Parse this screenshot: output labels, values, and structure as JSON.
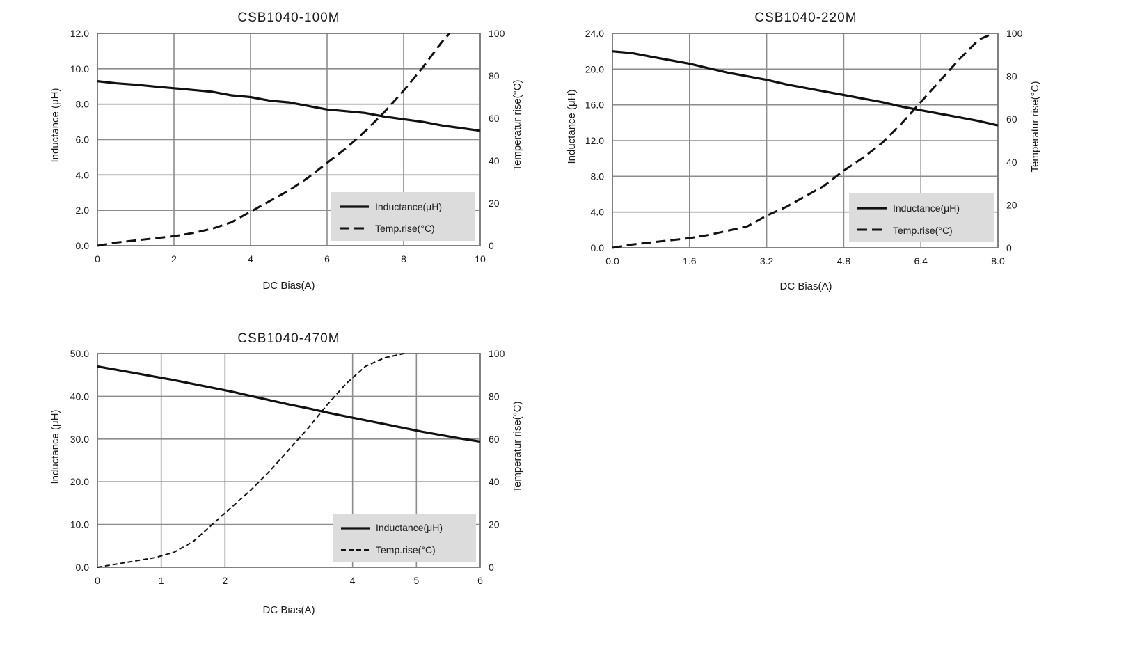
{
  "chart_data": [
    {
      "type": "line",
      "title": "CSB1040-100M",
      "xlabel": "DC Bias(A)",
      "ylabel": "Inductance (μH)",
      "y2label": "Temperatur rise(°C)",
      "xlim": [
        0,
        10
      ],
      "ylim": [
        0,
        12
      ],
      "y2lim": [
        0,
        100
      ],
      "xticks": [
        "0",
        "2",
        "4",
        "6",
        "8",
        "10"
      ],
      "yticks": [
        "0.0",
        "2.0",
        "4.0",
        "6.0",
        "8.0",
        "10.0",
        "12.0"
      ],
      "y2ticks": [
        "0",
        "20",
        "40",
        "60",
        "80",
        "100"
      ],
      "legend": {
        "position": "bottom-right",
        "inductance_label": "Inductance(μH)",
        "temp_label": "Temp.rise(°C)"
      },
      "series": [
        {
          "name": "Inductance(μH)",
          "axis": "left",
          "style": "solid",
          "x": [
            0,
            0.5,
            1,
            1.5,
            2,
            2.5,
            3,
            3.5,
            4,
            4.5,
            5,
            5.5,
            6,
            6.5,
            7,
            7.5,
            8,
            8.5,
            9,
            9.5,
            10
          ],
          "y": [
            9.3,
            9.18,
            9.1,
            9.0,
            8.9,
            8.8,
            8.7,
            8.5,
            8.4,
            8.2,
            8.1,
            7.9,
            7.7,
            7.6,
            7.5,
            7.3,
            7.15,
            7.0,
            6.8,
            6.65,
            6.5
          ]
        },
        {
          "name": "Temp.rise(°C)",
          "axis": "right",
          "style": "dashed",
          "x": [
            0,
            0.5,
            1,
            1.5,
            2,
            2.5,
            3,
            3.5,
            4,
            4.5,
            5,
            5.5,
            6,
            6.5,
            7,
            7.5,
            8,
            8.5,
            9,
            9.2
          ],
          "y": [
            0,
            1.5,
            2.5,
            3.5,
            4.5,
            6,
            8,
            11,
            16,
            21,
            26,
            32,
            39,
            46,
            54,
            63,
            73,
            84,
            96,
            100
          ]
        }
      ]
    },
    {
      "type": "line",
      "title": "CSB1040-220M",
      "xlabel": "DC Bias(A)",
      "ylabel": "Inductance (μH)",
      "y2label": "Temperatur rise(°C)",
      "xlim": [
        0,
        8
      ],
      "ylim": [
        0,
        24
      ],
      "y2lim": [
        0,
        100
      ],
      "xticks": [
        "0.0",
        "1.6",
        "3.2",
        "4.8",
        "6.4",
        "8.0"
      ],
      "yticks": [
        "0.0",
        "4.0",
        "8.0",
        "12.0",
        "16.0",
        "20.0",
        "24.0"
      ],
      "y2ticks": [
        "0",
        "20",
        "40",
        "60",
        "80",
        "100"
      ],
      "legend": {
        "position": "bottom-right",
        "inductance_label": "Inductance(μH)",
        "temp_label": "Temp.rise(°C)"
      },
      "series": [
        {
          "name": "Inductance(μH)",
          "axis": "left",
          "style": "solid",
          "x": [
            0,
            0.4,
            0.8,
            1.2,
            1.6,
            2.0,
            2.4,
            2.8,
            3.2,
            3.6,
            4.0,
            4.4,
            4.8,
            5.2,
            5.6,
            6.0,
            6.4,
            6.8,
            7.2,
            7.6,
            8.0
          ],
          "y": [
            22.0,
            21.8,
            21.4,
            21.0,
            20.6,
            20.1,
            19.6,
            19.2,
            18.8,
            18.3,
            17.9,
            17.5,
            17.1,
            16.7,
            16.3,
            15.8,
            15.4,
            15.0,
            14.6,
            14.2,
            13.7
          ]
        },
        {
          "name": "Temp.rise(°C)",
          "axis": "right",
          "style": "dashed",
          "x": [
            0,
            0.4,
            0.8,
            1.2,
            1.6,
            2.0,
            2.4,
            2.8,
            3.2,
            3.6,
            4.0,
            4.4,
            4.8,
            5.2,
            5.6,
            6.0,
            6.4,
            6.8,
            7.2,
            7.6,
            7.9
          ],
          "y": [
            0,
            1.5,
            2.5,
            3.5,
            4.5,
            6,
            8,
            10,
            15,
            19,
            24,
            29,
            36,
            42,
            49,
            58,
            68,
            78,
            88,
            97,
            100
          ]
        }
      ]
    },
    {
      "type": "line",
      "title": "CSB1040-470M",
      "xlabel": "DC Bias(A)",
      "ylabel": "Inductance (μH)",
      "y2label": "Temperatur rise(°C)",
      "xlim": [
        0,
        6
      ],
      "ylim": [
        0,
        50
      ],
      "y2lim": [
        0,
        100
      ],
      "xticks": [
        "0",
        "1",
        "2",
        "4",
        "5",
        "6"
      ],
      "yticks": [
        "0.0",
        "10.0",
        "20.0",
        "30.0",
        "40.0",
        "50.0"
      ],
      "y2ticks": [
        "0",
        "20",
        "40",
        "60",
        "80",
        "100"
      ],
      "legend": {
        "position": "bottom-right",
        "inductance_label": "Inductance(μH)",
        "temp_label": "Temp.rise(°C)"
      },
      "series": [
        {
          "name": "Inductance(μH)",
          "axis": "left",
          "style": "solid",
          "x": [
            0,
            0.3,
            0.6,
            0.9,
            1.2,
            1.5,
            1.8,
            2.1,
            2.4,
            2.7,
            3.0,
            3.3,
            3.6,
            3.9,
            4.2,
            4.5,
            4.8,
            5.1,
            5.4,
            5.7,
            6.0
          ],
          "y": [
            47.0,
            46.2,
            45.4,
            44.6,
            43.8,
            42.9,
            42.0,
            41.1,
            40.1,
            39.1,
            38.1,
            37.2,
            36.2,
            35.3,
            34.4,
            33.5,
            32.6,
            31.7,
            30.9,
            30.1,
            29.4
          ]
        },
        {
          "name": "Temp.rise(°C)",
          "axis": "right",
          "style": "dashed",
          "x": [
            0,
            0.3,
            0.6,
            0.9,
            1.2,
            1.5,
            1.8,
            2.1,
            2.4,
            2.7,
            3.0,
            3.3,
            3.6,
            3.9,
            4.2,
            4.5,
            4.8,
            4.85
          ],
          "y": [
            0,
            1.5,
            3,
            4.5,
            7,
            12,
            20,
            28,
            36,
            45,
            55,
            65,
            76,
            86,
            94,
            98,
            100,
            100
          ]
        }
      ]
    }
  ]
}
